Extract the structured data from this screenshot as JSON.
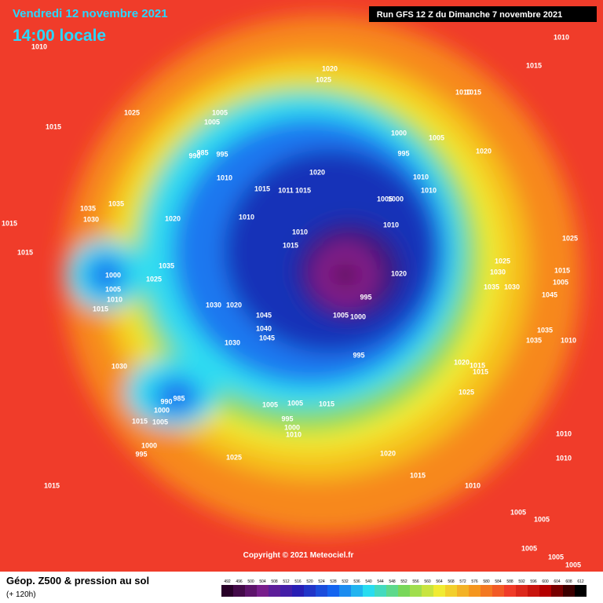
{
  "header": {
    "date": "Vendredi 12 novembre 2021",
    "time": "14:00 locale",
    "run": "Run GFS 12 Z du Dimanche 7 novembre 2021"
  },
  "copyright": "Copyright © 2021 Meteociel.fr",
  "legend": {
    "title": "Géop. Z500 & pression au sol",
    "subtitle": "(+ 120h)",
    "scale": [
      492,
      496,
      500,
      504,
      508,
      512,
      516,
      520,
      524,
      528,
      532,
      536,
      540,
      544,
      548,
      552,
      556,
      560,
      564,
      568,
      572,
      576,
      580,
      584,
      588,
      592,
      596,
      600,
      604,
      608,
      612
    ]
  },
  "isobar_labels": [
    "1010",
    "1010",
    "1020",
    "1025",
    "1015",
    "1015",
    "1025",
    "1005",
    "1005",
    "1010",
    "1015",
    "1000",
    "1005",
    "985",
    "990",
    "995",
    "995",
    "1020",
    "1020",
    "1010",
    "1010",
    "1015",
    "1011",
    "1015",
    "1010",
    "1035",
    "1035",
    "1030",
    "1020",
    "1010",
    "1000",
    "1005",
    "1010",
    "1010",
    "1015",
    "1015",
    "1015",
    "1025",
    "1025",
    "1030",
    "1000",
    "1035",
    "1025",
    "1020",
    "1015",
    "1005",
    "1035",
    "1030",
    "1005",
    "1010",
    "995",
    "1045",
    "1015",
    "1030",
    "1020",
    "1045",
    "1040",
    "1045",
    "1030",
    "1005",
    "1000",
    "1035",
    "1035",
    "1010",
    "995",
    "1020",
    "1015",
    "1030",
    "1015",
    "1025",
    "985",
    "990",
    "1000",
    "1005",
    "1015",
    "1005",
    "995",
    "1015",
    "1005",
    "1000",
    "1010",
    "1000",
    "995",
    "1020",
    "1025",
    "1010",
    "1010",
    "1015",
    "1010",
    "1015",
    "1005",
    "1005",
    "1005",
    "1005",
    "1005"
  ]
}
